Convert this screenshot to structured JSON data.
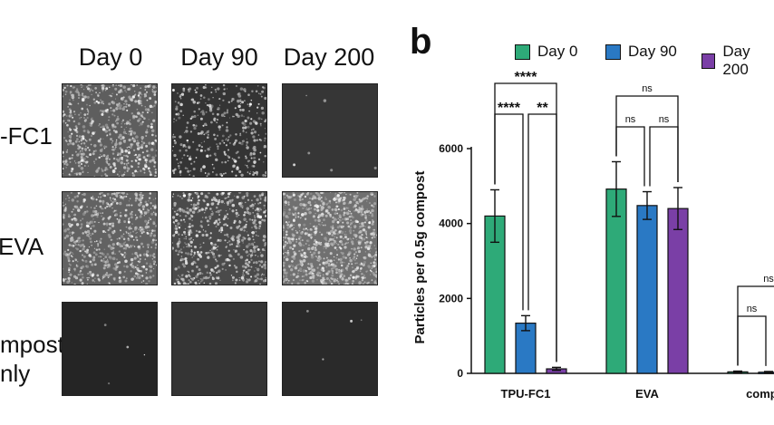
{
  "panel_a": {
    "column_headers": [
      "Day 0",
      "Day 90",
      "Day 200"
    ],
    "row_labels": [
      "-FC1",
      "EVA",
      "mpost",
      "nly"
    ]
  },
  "chart_data": {
    "panel_letter": "b",
    "type": "bar",
    "categories": [
      "TPU-FC1",
      "EVA",
      "compos"
    ],
    "series": [
      {
        "name": "Day 0",
        "color": "#2eaa78",
        "values": [
          4200,
          4920,
          40
        ],
        "errors": [
          700,
          730,
          20
        ]
      },
      {
        "name": "Day 90",
        "color": "#2a79c4",
        "values": [
          1340,
          4480,
          30
        ],
        "errors": [
          200,
          370,
          20
        ]
      },
      {
        "name": "Day 200",
        "color": "#7a3fa6",
        "values": [
          120,
          4400,
          20
        ],
        "errors": [
          40,
          560,
          20
        ]
      }
    ],
    "ylabel": "Particles per 0.5g compost",
    "xlabel": "",
    "ylim": [
      0,
      6000
    ],
    "yticks": [
      0,
      2000,
      4000,
      6000
    ],
    "legend_position": "top",
    "significance": [
      {
        "label": "****",
        "group": 0,
        "from": 0,
        "to": 2,
        "level": 1
      },
      {
        "label": "****",
        "group": 0,
        "from": 0,
        "to": 1,
        "level": 0
      },
      {
        "label": "**",
        "group": 0,
        "from": 1,
        "to": 2,
        "level": 0
      },
      {
        "label": "ns",
        "group": 1,
        "from": 0,
        "to": 2,
        "level": 1
      },
      {
        "label": "ns",
        "group": 1,
        "from": 0,
        "to": 1,
        "level": 0
      },
      {
        "label": "ns",
        "group": 1,
        "from": 1,
        "to": 2,
        "level": 0
      },
      {
        "label": "ns",
        "group": 2,
        "from": 0,
        "to": 2,
        "level": 1
      },
      {
        "label": "ns",
        "group": 2,
        "from": 0,
        "to": 1,
        "level": 0
      }
    ]
  }
}
